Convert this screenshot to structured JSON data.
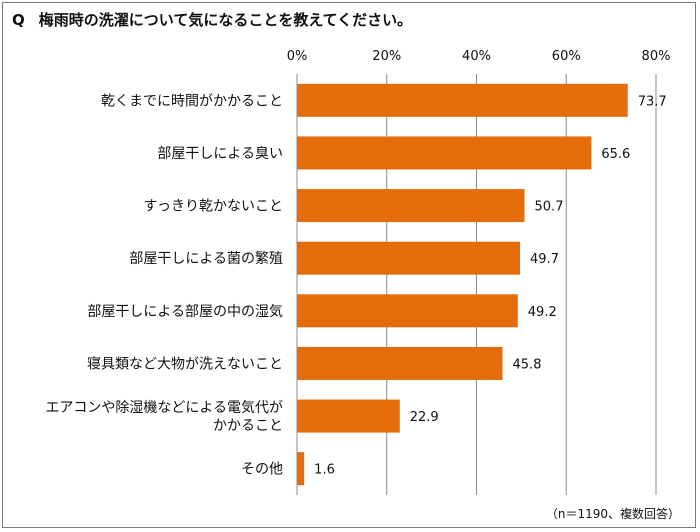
{
  "title": {
    "prefix": "Q",
    "text": "梅雨時の洗濯について気になることを教えてください。"
  },
  "note": "（n＝1190、複数回答）",
  "colors": {
    "bar": "#E46C0A",
    "grid": "#8c8c8c",
    "frame": "#7a7a7a"
  },
  "chart_data": {
    "type": "bar",
    "orientation": "horizontal",
    "categories": [
      [
        "乾くまでに時間がかかること"
      ],
      [
        "部屋干しによる臭い"
      ],
      [
        "すっきり乾かないこと"
      ],
      [
        "部屋干しによる菌の繁殖"
      ],
      [
        "部屋干しによる部屋の中の湿気"
      ],
      [
        "寝具類など大物が洗えないこと"
      ],
      [
        "エアコンや除湿機などによる電気代が",
        "かかること"
      ],
      [
        "その他"
      ]
    ],
    "values": [
      73.7,
      65.6,
      50.7,
      49.7,
      49.2,
      45.8,
      22.9,
      1.6
    ],
    "xlim": [
      0,
      80
    ],
    "ticks": [
      "0%",
      "20%",
      "40%",
      "60%",
      "80%"
    ],
    "tick_values": [
      0,
      20,
      40,
      60,
      80
    ],
    "grid": true,
    "data_labels": true
  }
}
